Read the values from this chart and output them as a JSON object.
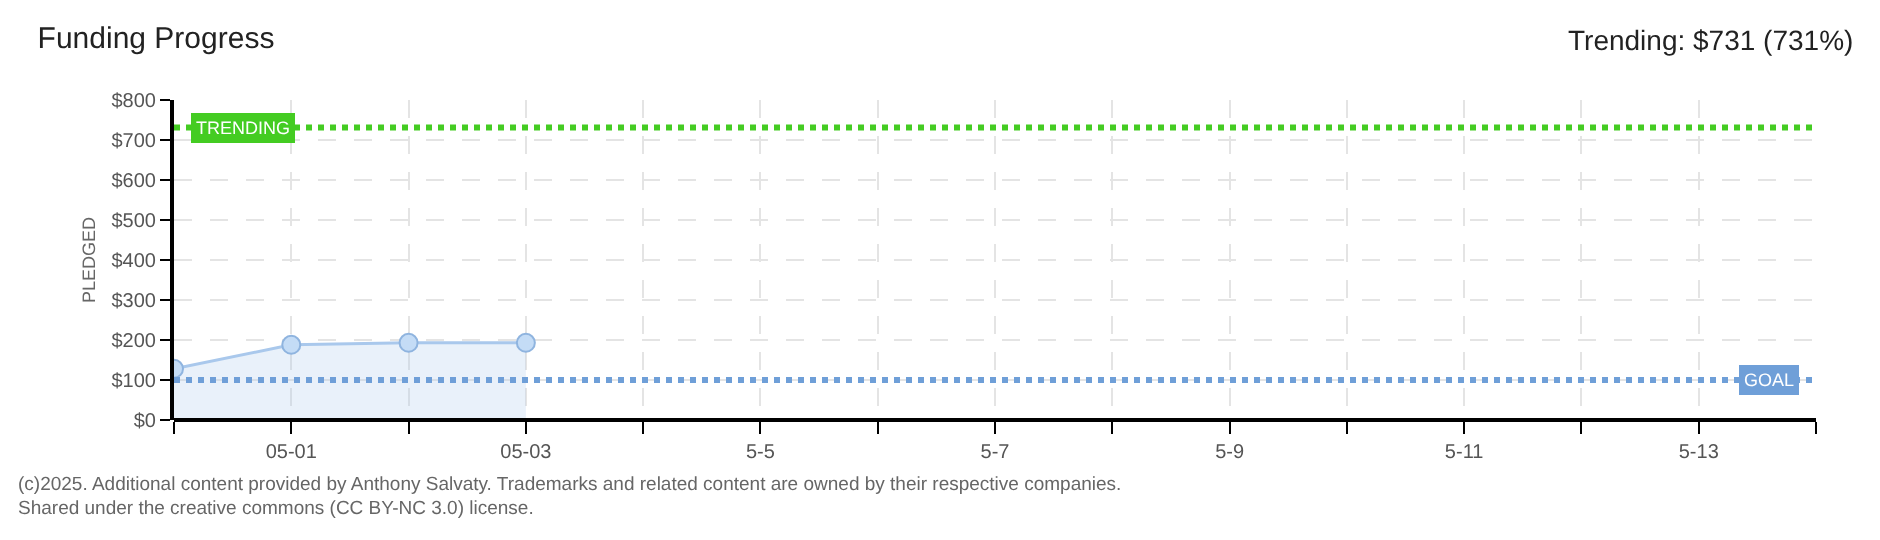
{
  "chart_data": {
    "type": "area",
    "title": "Funding Progress",
    "ylabel": "PLEDGED",
    "x": [
      "--04-30",
      "--05-01",
      "--05-02",
      "--05-03"
    ],
    "series": [
      {
        "color": "#a9c8ec",
        "values": [
          128,
          188,
          193,
          193
        ]
      }
    ],
    "xlim": [
      "--04-30",
      "--05-14"
    ],
    "xticks": [
      {
        "value": "--04-30",
        "label": null
      },
      {
        "value": "--05-01",
        "label": "05-01"
      },
      {
        "value": "--05-02",
        "label": null
      },
      {
        "value": "--05-03",
        "label": "05-03"
      },
      {
        "value": "--05-04",
        "label": null
      },
      {
        "value": "--05-05",
        "label": "5-5"
      },
      {
        "value": "--05-06",
        "label": null
      },
      {
        "value": "--05-07",
        "label": "5-7"
      },
      {
        "value": "--05-08",
        "label": null
      },
      {
        "value": "--05-09",
        "label": "5-9"
      },
      {
        "value": "--05-10",
        "label": null
      },
      {
        "value": "--05-11",
        "label": "5-11"
      },
      {
        "value": "--05-12",
        "label": null
      },
      {
        "value": "--05-13",
        "label": "5-13"
      },
      {
        "value": "--05-14",
        "label": null
      }
    ],
    "ylim": [
      0,
      800
    ],
    "yticks": [
      {
        "value": 0,
        "label": "$0"
      },
      {
        "value": 100,
        "label": "$100"
      },
      {
        "value": 200,
        "label": "$200"
      },
      {
        "value": 300,
        "label": "$300"
      },
      {
        "value": 400,
        "label": "$400"
      },
      {
        "value": 500,
        "label": "$500"
      },
      {
        "value": 600,
        "label": "$600"
      },
      {
        "value": 700,
        "label": "$700"
      },
      {
        "value": 800,
        "label": "$800"
      }
    ],
    "ref_lines": [
      {
        "axis": "y",
        "value": 731,
        "label": "TRENDING",
        "color": "#44cc22",
        "line_style": "dotted"
      },
      {
        "axis": "y",
        "value": 100,
        "label": "GOAL",
        "color": "#6f9fd8",
        "line_style": "dotted"
      }
    ],
    "annotations": [
      "Trending: $731 (731%)",
      "(c)2025. Additional content provided by Anthony Salvaty. Trademarks and related content are owned by their respective companies.",
      "Shared under the creative commons (CC BY-NC 3.0) license."
    ],
    "grid": true,
    "marker": "circle"
  }
}
